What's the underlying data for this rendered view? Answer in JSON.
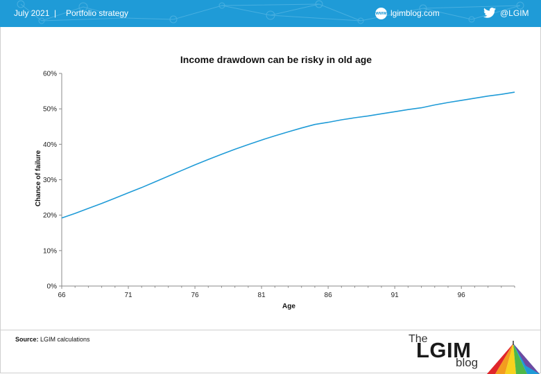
{
  "header": {
    "date": "July 2021",
    "separator": "|",
    "section": "Portfolio strategy",
    "site": "lgimblog.com",
    "site_icon_text": "www",
    "handle": "@LGIM",
    "background_color": "#1f9bd7"
  },
  "chart_data": {
    "type": "line",
    "title": "Income drawdown can be risky in old age",
    "xlabel": "Age",
    "ylabel": "Chance of failure",
    "xlim": [
      66,
      100
    ],
    "ylim": [
      0,
      60
    ],
    "x_ticks": [
      66,
      71,
      76,
      81,
      86,
      91,
      96
    ],
    "y_ticks": [
      0,
      10,
      20,
      30,
      40,
      50,
      60
    ],
    "y_tick_labels": [
      "0%",
      "10%",
      "20%",
      "30%",
      "40%",
      "50%",
      "60%"
    ],
    "grid": false,
    "line_color": "#1f9bd7",
    "series": [
      {
        "x": [
          66,
          67,
          68,
          69,
          70,
          71,
          72,
          73,
          74,
          75,
          76,
          77,
          78,
          79,
          80,
          81,
          82,
          83,
          84,
          85,
          86,
          87,
          88,
          89,
          90,
          91,
          92,
          93,
          94,
          95,
          96,
          97,
          98,
          99,
          100
        ],
        "values": [
          19.2,
          20.5,
          21.9,
          23.3,
          24.8,
          26.3,
          27.8,
          29.4,
          31.0,
          32.6,
          34.2,
          35.7,
          37.2,
          38.6,
          39.9,
          41.2,
          42.4,
          43.5,
          44.6,
          45.6,
          46.2,
          46.9,
          47.5,
          48.0,
          48.6,
          49.2,
          49.8,
          50.3,
          51.1,
          51.8,
          52.4,
          53.0,
          53.6,
          54.1,
          54.7
        ]
      }
    ]
  },
  "footer": {
    "source_label": "Source:",
    "source_text": "LGIM calculations",
    "logo_the": "The",
    "logo_lgim": "LGIM",
    "logo_blog": "blog"
  }
}
